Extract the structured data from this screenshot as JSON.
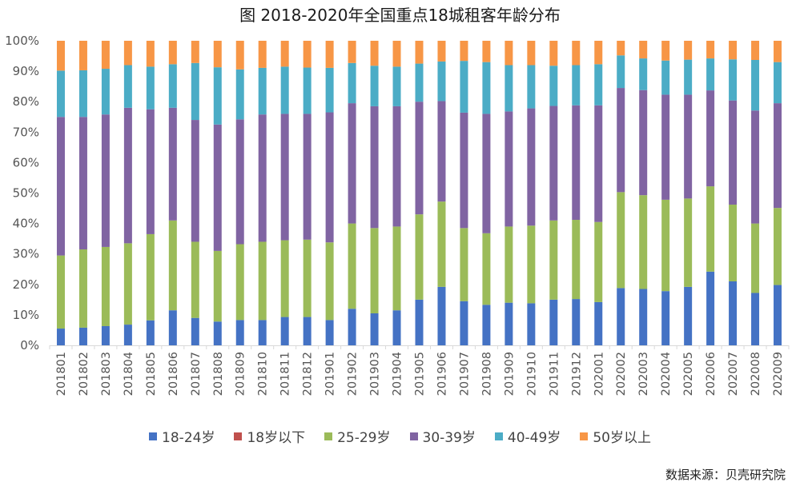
{
  "chart_data": {
    "type": "bar",
    "stacked": true,
    "title": "图 2018-2020年全国重点18城租客年龄分布",
    "xlabel": "",
    "ylabel": "",
    "ylim": [
      0,
      100
    ],
    "y_ticks": [
      "0%",
      "10%",
      "20%",
      "30%",
      "40%",
      "50%",
      "60%",
      "70%",
      "80%",
      "90%",
      "100%"
    ],
    "grid": false,
    "legend_position": "bottom",
    "categories": [
      "201801",
      "201802",
      "201803",
      "201804",
      "201805",
      "201806",
      "201807",
      "201808",
      "201809",
      "201810",
      "201811",
      "201812",
      "201901",
      "201902",
      "201903",
      "201904",
      "201905",
      "201906",
      "201907",
      "201908",
      "201909",
      "201910",
      "201911",
      "201912",
      "202001",
      "202002",
      "202003",
      "202004",
      "202005",
      "202006",
      "202007",
      "202008",
      "202009"
    ],
    "series": [
      {
        "name": "18-24岁",
        "color": "#4472C4",
        "values": [
          5.5,
          5.8,
          6.3,
          6.8,
          8.2,
          11.5,
          9,
          7.8,
          8.3,
          8.3,
          9.3,
          9.3,
          8.3,
          12,
          10.5,
          11.5,
          15,
          19.2,
          14.5,
          13.3,
          14,
          13.8,
          15,
          15.2,
          14.2,
          18.8,
          18.5,
          17.8,
          19.2,
          24.2,
          21,
          17.2,
          19.8
        ]
      },
      {
        "name": "18岁以下",
        "color": "#C0504D",
        "values": [
          0,
          0,
          0,
          0,
          0,
          0,
          0,
          0,
          0,
          0,
          0,
          0,
          0,
          0,
          0,
          0,
          0,
          0,
          0,
          0,
          0,
          0,
          0,
          0,
          0,
          0,
          0,
          0,
          0,
          0,
          0,
          0,
          0
        ]
      },
      {
        "name": "25-29岁",
        "color": "#9BBB59",
        "values": [
          24,
          25.7,
          26,
          26.7,
          28.3,
          29.5,
          25,
          23.2,
          24.9,
          25.7,
          25.2,
          25.4,
          25.5,
          28,
          28,
          27.5,
          28,
          28,
          24,
          23.5,
          25,
          25.5,
          26,
          26,
          26.3,
          31.5,
          30.8,
          30,
          29,
          28,
          25.2,
          22.8,
          25.3
        ]
      },
      {
        "name": "30-39岁",
        "color": "#8064A2",
        "values": [
          45.5,
          43.5,
          43.5,
          44.5,
          41,
          37,
          40,
          41.5,
          41,
          41.8,
          41.5,
          41.3,
          42.7,
          39.5,
          40,
          39.5,
          37,
          33,
          37.9,
          39.2,
          37.8,
          38.5,
          37.6,
          37.6,
          38.3,
          34.2,
          34.5,
          34.5,
          34.1,
          31.5,
          34.2,
          37.1,
          34.4
        ]
      },
      {
        "name": "40-49岁",
        "color": "#4BACC6",
        "values": [
          15.2,
          15.3,
          15,
          14,
          14,
          14.3,
          18.7,
          18.8,
          16.4,
          15.3,
          15.5,
          15.2,
          14.6,
          13.2,
          13.3,
          13,
          12.5,
          13,
          17,
          17,
          15.2,
          14.2,
          13.2,
          13.2,
          13.5,
          10.7,
          10.4,
          11.2,
          11.5,
          10.5,
          13.5,
          16.6,
          13.5
        ]
      },
      {
        "name": "50岁以上",
        "color": "#F79646",
        "values": [
          9.8,
          9.7,
          9.2,
          8,
          8.5,
          7.7,
          7.3,
          8.7,
          9.4,
          8.9,
          8.5,
          8.8,
          8.9,
          7.3,
          8.2,
          8.5,
          7.5,
          6.8,
          6.6,
          7,
          8,
          8,
          8.2,
          8,
          7.7,
          4.8,
          5.8,
          6.5,
          6.2,
          5.8,
          6.1,
          6.3,
          7
        ]
      }
    ]
  },
  "source_note": "数据来源：贝壳研究院"
}
